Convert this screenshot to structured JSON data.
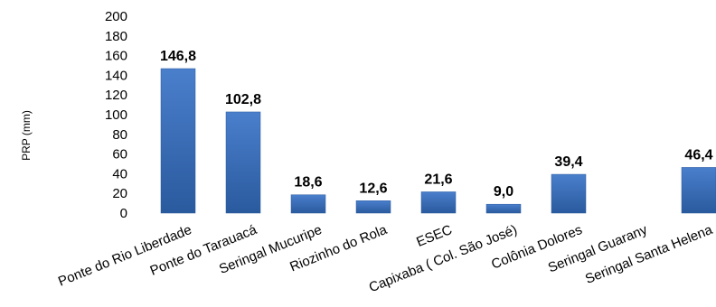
{
  "chart_data": {
    "type": "bar",
    "categories": [
      "Ponte do Rio Liberdade",
      "Ponte do Tarauacá",
      "Seringal Mucuripe",
      "Riozinho do Rola",
      "ESEC",
      "Capixaba ( Col. São José)",
      "Colônia Dolores",
      "Seringal Guarany",
      "Seringal Santa Helena"
    ],
    "values": [
      146.8,
      102.8,
      18.6,
      12.6,
      21.6,
      9.0,
      39.4,
      null,
      46.4
    ],
    "data_labels": [
      "146,8",
      "102,8",
      "18,6",
      "12,6",
      "21,6",
      "9,0",
      "39,4",
      "",
      "46,4"
    ],
    "ylabel": "PRP (mm)",
    "xlabel": "",
    "ylim": [
      0,
      200
    ],
    "yticks": [
      "0",
      "20",
      "40",
      "60",
      "80",
      "100",
      "120",
      "140",
      "160",
      "180",
      "200"
    ],
    "grid": false,
    "bar_color": "#3a6eb8",
    "bar_color_dark": "#24528f"
  }
}
